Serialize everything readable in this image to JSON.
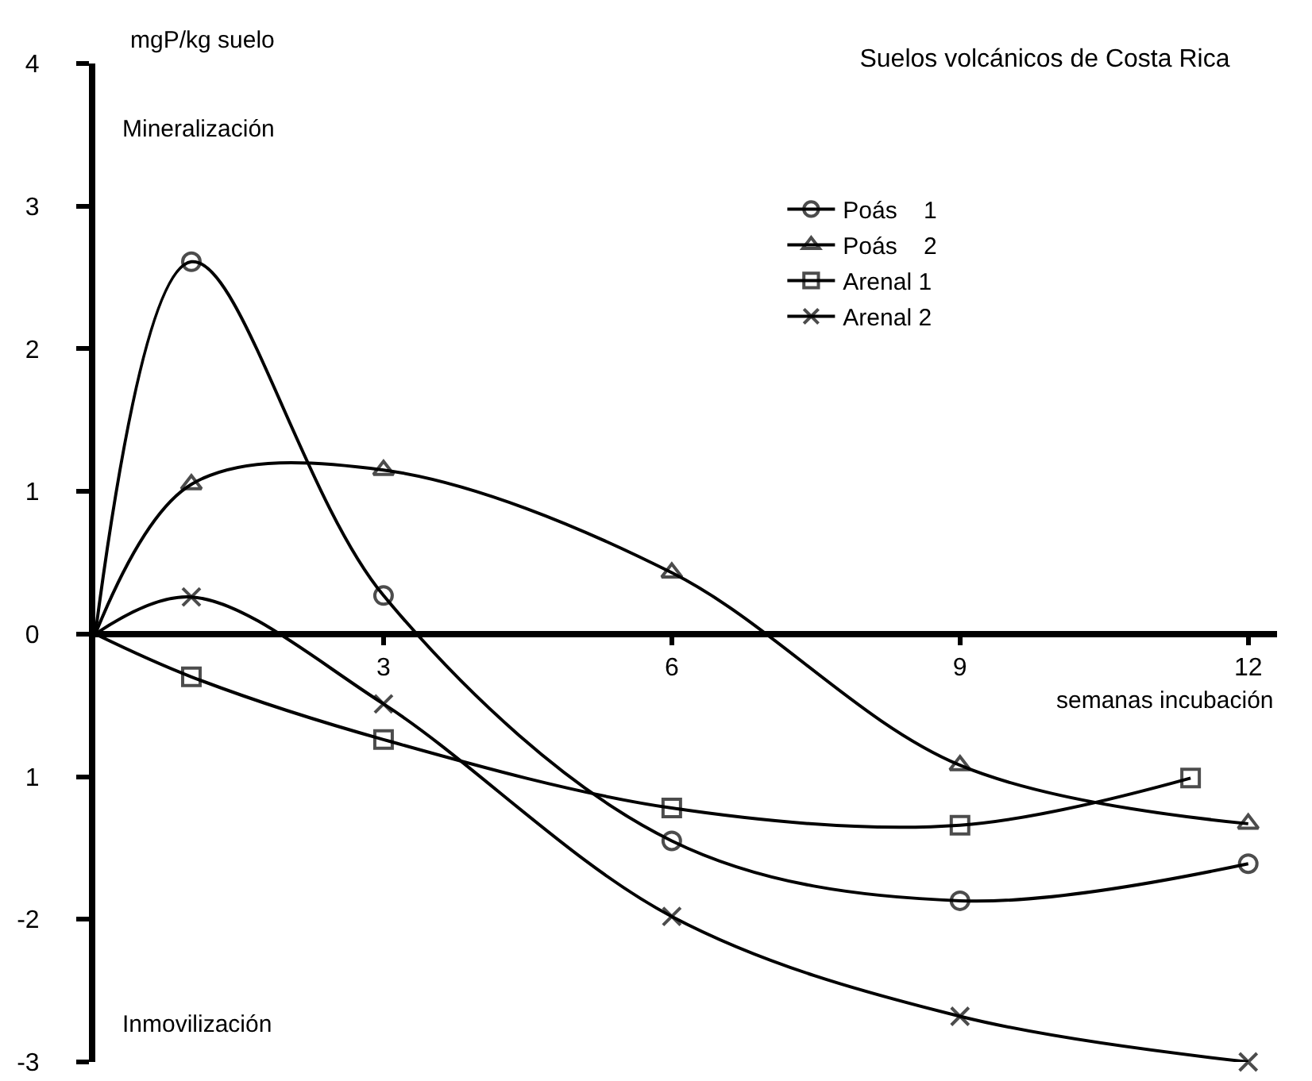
{
  "chart_data": {
    "type": "line",
    "title": "Suelos volcánicos de Costa Rica",
    "xlabel": "semanas incubación",
    "ylabel": "mgP/kg suelo",
    "annotations": [
      "Mineralización",
      "Inmovilización"
    ],
    "xlim": [
      0,
      12.3
    ],
    "xticks": [
      3,
      6,
      9,
      12
    ],
    "ylim": [
      -3,
      4
    ],
    "yticks": [
      -3,
      -2,
      {
        "value": -1,
        "label": "1"
      },
      0,
      1,
      2,
      3,
      4
    ],
    "legend": "top right",
    "line_style": "solid",
    "series": [
      {
        "name": "Poás    1",
        "color": "#000000",
        "marker": "circle",
        "x": [
          0,
          1,
          3,
          6,
          9,
          12
        ],
        "values": [
          0,
          2.61,
          0.27,
          -1.45,
          -1.87,
          -1.61
        ]
      },
      {
        "name": "Poás    2",
        "color": "#000000",
        "marker": "triangle",
        "x": [
          0,
          1,
          3,
          6,
          9,
          12
        ],
        "values": [
          0,
          1.05,
          1.15,
          0.43,
          -0.92,
          -1.33
        ]
      },
      {
        "name": "Arenal 1",
        "color": "#000000",
        "marker": "square",
        "x": [
          0,
          1,
          3,
          6,
          9,
          11.4
        ],
        "values": [
          0,
          -0.3,
          -0.74,
          -1.22,
          -1.34,
          -1.01
        ]
      },
      {
        "name": "Arenal 2",
        "color": "#000000",
        "marker": "cross",
        "x": [
          0,
          1,
          3,
          6,
          9,
          12
        ],
        "values": [
          0,
          0.26,
          -0.49,
          -1.98,
          -2.68,
          -3.0
        ]
      }
    ]
  }
}
